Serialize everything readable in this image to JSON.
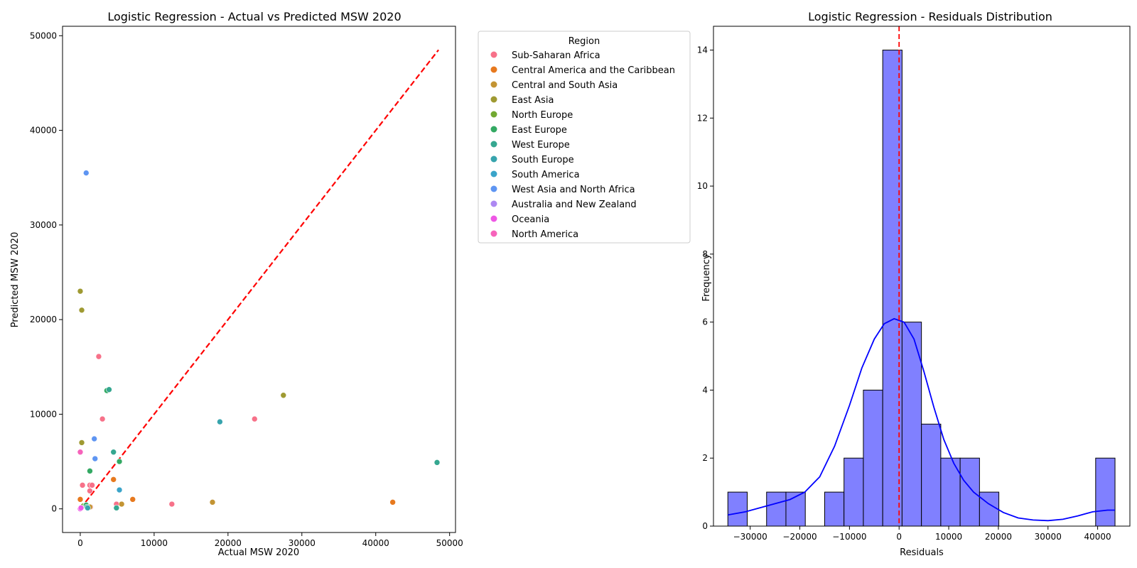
{
  "chart_data": [
    {
      "type": "scatter",
      "title": "Logistic Regression - Actual vs Predicted MSW 2020",
      "xlabel": "Actual MSW 2020",
      "ylabel": "Predicted MSW 2020",
      "xlim": [
        -2400,
        50800
      ],
      "ylim": [
        -2500,
        51000
      ],
      "xticks": [
        {
          "value": 0,
          "label": "0"
        },
        {
          "value": 10000,
          "label": "10000"
        },
        {
          "value": 20000,
          "label": "20000"
        },
        {
          "value": 30000,
          "label": "30000"
        },
        {
          "value": 40000,
          "label": "40000"
        },
        {
          "value": 50000,
          "label": "50000"
        }
      ],
      "yticks": [
        {
          "value": 0,
          "label": "0"
        },
        {
          "value": 10000,
          "label": "10000"
        },
        {
          "value": 20000,
          "label": "20000"
        },
        {
          "value": 30000,
          "label": "30000"
        },
        {
          "value": 40000,
          "label": "40000"
        },
        {
          "value": 50000,
          "label": "50000"
        }
      ],
      "reference_line": {
        "from": [
          0,
          0
        ],
        "to": [
          48500,
          48500
        ],
        "color": "#ff0000",
        "style": "dashed"
      },
      "legend": {
        "title": "Region",
        "placement": "outside-right"
      },
      "series": [
        {
          "name": "Sub-Saharan Africa",
          "color": "#f77189",
          "points": [
            [
              2500,
              16100
            ],
            [
              3000,
              9500
            ],
            [
              23600,
              9500
            ],
            [
              300,
              2500
            ],
            [
              1300,
              2500
            ],
            [
              1600,
              2500
            ],
            [
              1300,
              1900
            ],
            [
              12400,
              500
            ],
            [
              4900,
              500
            ],
            [
              1400,
              200
            ]
          ]
        },
        {
          "name": "Central America and the Caribbean",
          "color": "#e7791e",
          "points": [
            [
              42300,
              700
            ],
            [
              7100,
              1000
            ],
            [
              4500,
              3100
            ],
            [
              0,
              1000
            ]
          ]
        },
        {
          "name": "Central and South Asia",
          "color": "#c39433",
          "points": [
            [
              17900,
              700
            ],
            [
              5600,
              500
            ],
            [
              1300,
              200
            ]
          ]
        },
        {
          "name": "East Asia",
          "color": "#9f9a32",
          "points": [
            [
              0,
              23000
            ],
            [
              200,
              21000
            ],
            [
              27500,
              12000
            ],
            [
              200,
              7000
            ]
          ]
        },
        {
          "name": "North Europe",
          "color": "#72a931",
          "points": [
            [
              400,
              300
            ],
            [
              700,
              300
            ]
          ]
        },
        {
          "name": "East Europe",
          "color": "#33a963",
          "points": [
            [
              3600,
              12500
            ],
            [
              1300,
              4000
            ],
            [
              5300,
              5000
            ],
            [
              800,
              400
            ]
          ]
        },
        {
          "name": "West Europe",
          "color": "#35a790",
          "points": [
            [
              48300,
              4900
            ],
            [
              4500,
              6000
            ],
            [
              3900,
              12600
            ],
            [
              4900,
              100
            ],
            [
              900,
              200
            ]
          ]
        },
        {
          "name": "South Europe",
          "color": "#37a4ad",
          "points": [
            [
              18900,
              9200
            ],
            [
              1000,
              100
            ]
          ]
        },
        {
          "name": "South America",
          "color": "#3aa4c9",
          "points": [
            [
              5300,
              2000
            ]
          ]
        },
        {
          "name": "West Asia and North Africa",
          "color": "#5e95f2",
          "points": [
            [
              800,
              35500
            ],
            [
              1900,
              7400
            ],
            [
              2000,
              5300
            ]
          ]
        },
        {
          "name": "Australia and New Zealand",
          "color": "#ad88f2",
          "points": []
        },
        {
          "name": "Oceania",
          "color": "#ee57e5",
          "points": [
            [
              0,
              0
            ],
            [
              100,
              100
            ]
          ]
        },
        {
          "name": "North America",
          "color": "#f663bb",
          "points": [
            [
              0,
              6000
            ]
          ]
        }
      ]
    },
    {
      "type": "bar",
      "title": "Logistic Regression - Residuals Distribution",
      "xlabel": "Residuals",
      "ylabel": "Frequency",
      "xlim": [
        -37400,
        46500
      ],
      "ylim": [
        0,
        14.7
      ],
      "xticks": [
        {
          "value": -30000,
          "label": "−30000"
        },
        {
          "value": -20000,
          "label": "−20000"
        },
        {
          "value": -10000,
          "label": "−10000"
        },
        {
          "value": 0,
          "label": "0"
        },
        {
          "value": 10000,
          "label": "10000"
        },
        {
          "value": 20000,
          "label": "20000"
        },
        {
          "value": 30000,
          "label": "30000"
        },
        {
          "value": 40000,
          "label": "40000"
        }
      ],
      "yticks": [
        {
          "value": 0,
          "label": "0"
        },
        {
          "value": 2,
          "label": "2"
        },
        {
          "value": 4,
          "label": "4"
        },
        {
          "value": 6,
          "label": "6"
        },
        {
          "value": 8,
          "label": "8"
        },
        {
          "value": 10,
          "label": "10"
        },
        {
          "value": 12,
          "label": "12"
        },
        {
          "value": 14,
          "label": "14"
        }
      ],
      "bin_start": -34500,
      "bin_width": 3900,
      "values": [
        1,
        0,
        1,
        1,
        0,
        1,
        2,
        4,
        14,
        6,
        3,
        2,
        2,
        1,
        0,
        0,
        0,
        0,
        0,
        2
      ],
      "bar_color": "#8080ff",
      "kde": {
        "color": "#0000ff",
        "points": [
          [
            -34500,
            0.33
          ],
          [
            -31000,
            0.42
          ],
          [
            -28000,
            0.54
          ],
          [
            -25000,
            0.66
          ],
          [
            -22000,
            0.78
          ],
          [
            -19000,
            1.0
          ],
          [
            -16000,
            1.45
          ],
          [
            -13000,
            2.35
          ],
          [
            -10000,
            3.55
          ],
          [
            -7500,
            4.65
          ],
          [
            -5000,
            5.5
          ],
          [
            -3000,
            5.95
          ],
          [
            -1000,
            6.1
          ],
          [
            1000,
            6.0
          ],
          [
            3000,
            5.5
          ],
          [
            5000,
            4.55
          ],
          [
            7000,
            3.5
          ],
          [
            9000,
            2.55
          ],
          [
            11000,
            1.85
          ],
          [
            13000,
            1.35
          ],
          [
            15000,
            1.0
          ],
          [
            18000,
            0.66
          ],
          [
            21000,
            0.4
          ],
          [
            24000,
            0.24
          ],
          [
            27000,
            0.18
          ],
          [
            30000,
            0.16
          ],
          [
            33000,
            0.2
          ],
          [
            36000,
            0.3
          ],
          [
            39000,
            0.42
          ],
          [
            42000,
            0.47
          ],
          [
            43500,
            0.47
          ]
        ]
      },
      "reference_line": {
        "x": 0,
        "color": "#ff0000",
        "style": "dashed"
      }
    }
  ]
}
